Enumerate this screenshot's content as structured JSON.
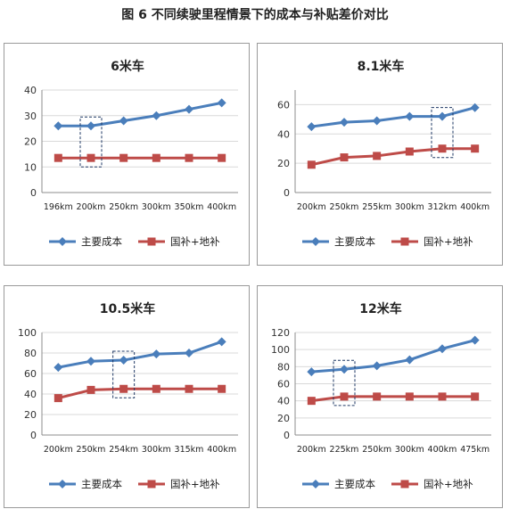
{
  "figure_title": "图 6   不同续驶里程情景下的成本与补贴差价对比",
  "colors": {
    "cost": "#4a7ebb",
    "subsidy": "#be4b48",
    "grid": "#d9d9d9",
    "axis": "#8c8c8c",
    "highlight": "#1f3864"
  },
  "chart_data": [
    {
      "type": "line",
      "title": "6米车",
      "categories": [
        "196km",
        "200km",
        "250km",
        "300km",
        "350km",
        "400km"
      ],
      "ylim": [
        0,
        40
      ],
      "yticks": [
        0,
        10,
        20,
        30,
        40
      ],
      "series": [
        {
          "name": "主要成本",
          "values": [
            26,
            26,
            28,
            30,
            32.5,
            35
          ]
        },
        {
          "name": "国补+地补",
          "values": [
            13.5,
            13.5,
            13.5,
            13.5,
            13.5,
            13.5
          ]
        }
      ],
      "highlight_category": "200km",
      "legend": "bottom"
    },
    {
      "type": "line",
      "title": "8.1米车",
      "categories": [
        "200km",
        "250km",
        "255km",
        "300km",
        "312km",
        "400km"
      ],
      "ylim": [
        0,
        70
      ],
      "yticks": [
        0,
        20,
        40,
        60
      ],
      "series": [
        {
          "name": "主要成本",
          "values": [
            45,
            48,
            49,
            52,
            52,
            58
          ]
        },
        {
          "name": "国补+地补",
          "values": [
            19,
            24,
            25,
            28,
            30,
            30
          ]
        }
      ],
      "highlight_category": "312km",
      "legend": "bottom"
    },
    {
      "type": "line",
      "title": "10.5米车",
      "categories": [
        "200km",
        "250km",
        "254km",
        "300km",
        "315km",
        "400km"
      ],
      "ylim": [
        0,
        100
      ],
      "yticks": [
        0,
        20,
        40,
        60,
        80,
        100
      ],
      "series": [
        {
          "name": "主要成本",
          "values": [
            66,
            72,
            73,
            79,
            80,
            91
          ]
        },
        {
          "name": "国补+地补",
          "values": [
            36,
            44,
            45,
            45,
            45,
            45
          ]
        }
      ],
      "highlight_category": "254km",
      "legend": "bottom"
    },
    {
      "type": "line",
      "title": "12米车",
      "categories": [
        "200km",
        "225km",
        "250km",
        "300km",
        "400km",
        "475km"
      ],
      "ylim": [
        0,
        120
      ],
      "yticks": [
        0,
        20,
        40,
        60,
        80,
        100,
        120
      ],
      "series": [
        {
          "name": "主要成本",
          "values": [
            74,
            77,
            81,
            88,
            101,
            111
          ]
        },
        {
          "name": "国补+地补",
          "values": [
            40,
            45,
            45,
            45,
            45,
            45
          ]
        }
      ],
      "highlight_category": "225km",
      "legend": "bottom"
    }
  ]
}
